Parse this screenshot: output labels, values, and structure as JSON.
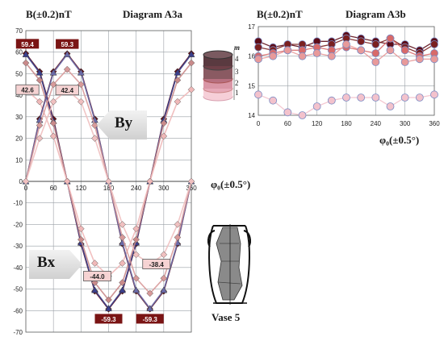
{
  "figure": {
    "left_ylabel": "B(±0.2)nT",
    "left_title": "Diagram A3a",
    "right_ylabel": "B(±0.2)nT",
    "right_title": "Diagram A3b",
    "left_xlabel": "φ₀(±0.5°)",
    "right_xlabel": "φ₀(±0.5°)",
    "by_label": "By",
    "bx_label": "Bx",
    "vase_label": "Vase 5",
    "legend_m": "m",
    "legend_levels": [
      "4",
      "3",
      "2",
      "1"
    ]
  },
  "colors": {
    "series": [
      "#5c0b16",
      "#9c3a3a",
      "#d88a8a",
      "#f0c0c0",
      "#7c8cc4"
    ],
    "grid": "#9aa0a6",
    "label_dark_bg": "#7a1414",
    "label_light_bg": "#f6d3d3"
  },
  "chart_data": [
    {
      "type": "line",
      "title": "Diagram A3a",
      "ylabel": "B(±0.2)nT",
      "xlabel": "φ₀(±0.5°)",
      "xlim": [
        0,
        360
      ],
      "ylim": [
        -70,
        70
      ],
      "xticks": [
        0,
        60,
        120,
        180,
        240,
        300,
        360
      ],
      "yticks": [
        70,
        60,
        50,
        40,
        30,
        20,
        10,
        0,
        -10,
        -20,
        -30,
        -40,
        -50,
        -60,
        -70
      ],
      "grid": true,
      "x": [
        0,
        30,
        60,
        90,
        120,
        150,
        180,
        210,
        240,
        270,
        300,
        330,
        360
      ],
      "series": [
        {
          "values": [
            59.4,
            51,
            29,
            0,
            -29,
            -51,
            -59.3,
            -51,
            -29,
            0,
            29,
            51,
            59.4
          ]
        },
        {
          "values": [
            59.0,
            50.5,
            28,
            0,
            -28.5,
            -50.5,
            -59.0,
            -50.5,
            -28.5,
            0,
            28.5,
            50.5,
            59.0
          ]
        },
        {
          "values": [
            55,
            47,
            27,
            0,
            -27,
            -47,
            -55,
            -47,
            -27,
            0,
            27,
            47,
            55
          ]
        },
        {
          "values": [
            42.6,
            37,
            21,
            0,
            -22,
            -38,
            -44.0,
            -38,
            -22,
            0,
            21,
            37,
            42.6
          ]
        },
        {
          "values": [
            0,
            29,
            51,
            59.3,
            51,
            29,
            0,
            -29,
            -51,
            -59.3,
            -51,
            -29,
            0
          ]
        },
        {
          "values": [
            0,
            28.5,
            50.5,
            59.0,
            50.5,
            28.5,
            0,
            -28.5,
            -50.5,
            -59.0,
            -50.5,
            -28.5,
            0
          ]
        },
        {
          "values": [
            0,
            26,
            45,
            52,
            45,
            26,
            0,
            -26,
            -45,
            -52,
            -45,
            -26,
            0
          ]
        },
        {
          "values": [
            0,
            20,
            37,
            42.4,
            37,
            20,
            0,
            -20,
            -34,
            -38.4,
            -34,
            -20,
            0
          ]
        }
      ],
      "data_labels": [
        {
          "x": 0,
          "y": 59.4,
          "text": "59.4",
          "style": "dark"
        },
        {
          "x": 90,
          "y": 59.3,
          "text": "59.3",
          "style": "dark"
        },
        {
          "x": 0,
          "y": 42.6,
          "text": "42.6",
          "style": "light"
        },
        {
          "x": 90,
          "y": 42.4,
          "text": "42.4",
          "style": "light"
        },
        {
          "x": 180,
          "y": -44.0,
          "text": "-44.0",
          "style": "light"
        },
        {
          "x": 270,
          "y": -38.4,
          "text": "-38.4",
          "style": "light"
        },
        {
          "x": 180,
          "y": -59.3,
          "text": "-59.3",
          "style": "dark"
        },
        {
          "x": 270,
          "y": -59.3,
          "text": "-59.3",
          "style": "dark"
        }
      ]
    },
    {
      "type": "line",
      "title": "Diagram A3b",
      "ylabel": "B(±0.2)nT",
      "xlabel": "φ₀(±0.5°)",
      "xlim": [
        0,
        360
      ],
      "ylim": [
        14,
        17
      ],
      "xticks": [
        0,
        60,
        120,
        180,
        240,
        300,
        360
      ],
      "yticks": [
        17,
        16,
        15,
        14
      ],
      "grid": true,
      "x": [
        0,
        30,
        60,
        90,
        120,
        150,
        180,
        210,
        240,
        270,
        300,
        330,
        360
      ],
      "series": [
        {
          "values": [
            16.5,
            16.3,
            16.4,
            16.3,
            16.5,
            16.5,
            16.7,
            16.6,
            16.5,
            16.4,
            16.4,
            16.2,
            16.5
          ]
        },
        {
          "values": [
            16.3,
            16.2,
            16.4,
            16.4,
            16.3,
            16.4,
            16.6,
            16.5,
            16.4,
            16.6,
            16.3,
            16.1,
            16.4
          ]
        },
        {
          "values": [
            16.0,
            16.1,
            16.2,
            16.2,
            16.3,
            16.2,
            16.3,
            16.2,
            16.1,
            16.6,
            16.2,
            16.0,
            16.1
          ]
        },
        {
          "values": [
            15.9,
            16.0,
            16.2,
            16.0,
            16.1,
            16.0,
            16.4,
            16.2,
            15.8,
            16.2,
            15.8,
            15.9,
            15.9
          ]
        },
        {
          "values": [
            14.7,
            14.5,
            14.1,
            14.0,
            14.3,
            14.5,
            14.6,
            14.6,
            14.6,
            14.3,
            14.6,
            14.6,
            14.7
          ]
        }
      ]
    }
  ]
}
